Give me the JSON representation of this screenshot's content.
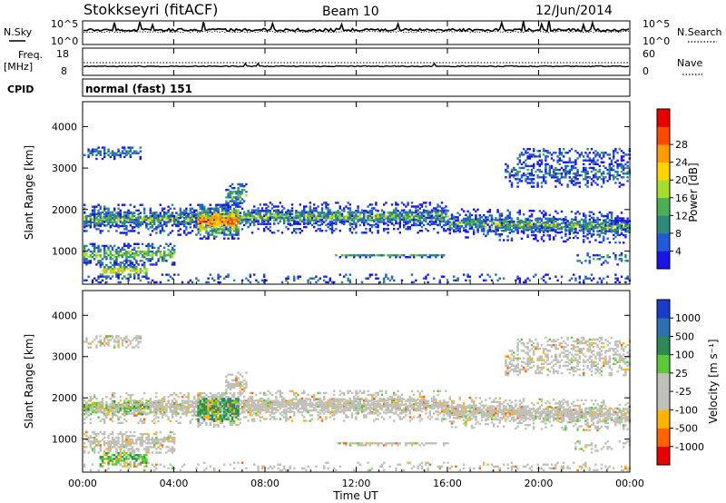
{
  "header": {
    "station": "Stokkseyri (fitACF)",
    "beam": "Beam 10",
    "date": "12/Jun/2014"
  },
  "top_panels": {
    "nsky_label": "N.Sky",
    "nsearch_label": "N.Search",
    "freq_label_1": "Freq.",
    "freq_label_2": "[MHz]",
    "nave_label": "Nave",
    "cpid_label": "CPID",
    "cpid_value": "normal (fast) 151",
    "noise_left_ticks": [
      "10^5",
      "10^0"
    ],
    "noise_right_ticks": [
      "10^5",
      "10^0"
    ],
    "freq_left_ticks": [
      "18",
      "8"
    ],
    "freq_right_ticks": [
      "60",
      "0"
    ]
  },
  "chart_data": [
    {
      "type": "heatmap",
      "parameter": "Power",
      "ylabel": "Slant Range [km]",
      "ylim": [
        200,
        4600
      ],
      "yticks": [
        "1000",
        "2000",
        "3000",
        "4000"
      ],
      "colorbar_label": "Power [dB]",
      "colorbar_ticks": [
        "4",
        "8",
        "12",
        "16",
        "20",
        "24",
        "28"
      ],
      "colors": [
        "#1a14e6",
        "#1f5bd6",
        "#2e8a7a",
        "#4caf55",
        "#a6dc2d",
        "#ffd400",
        "#ff9a00",
        "#ff4a00",
        "#e60000"
      ]
    },
    {
      "type": "heatmap",
      "parameter": "Velocity",
      "ylabel": "Slant Range [km]",
      "ylim": [
        200,
        4600
      ],
      "yticks": [
        "1000",
        "2000",
        "3000",
        "4000"
      ],
      "colorbar_label": "Velocity [m s⁻¹]",
      "colorbar_ticks": [
        "1000",
        "500",
        "100",
        "25",
        "-25",
        "-100",
        "-500",
        "-1000"
      ],
      "colors": [
        "#1a3cc8",
        "#2e6fb0",
        "#2e8a55",
        "#5cc83c",
        "#c0c0b8",
        "#c0c0b8",
        "#ffb400",
        "#ff6400",
        "#e60000"
      ]
    }
  ],
  "time_axis": {
    "xlabel": "Time UT",
    "ticks": [
      "00:00",
      "04:00",
      "08:00",
      "12:00",
      "16:00",
      "20:00",
      "00:00"
    ]
  }
}
